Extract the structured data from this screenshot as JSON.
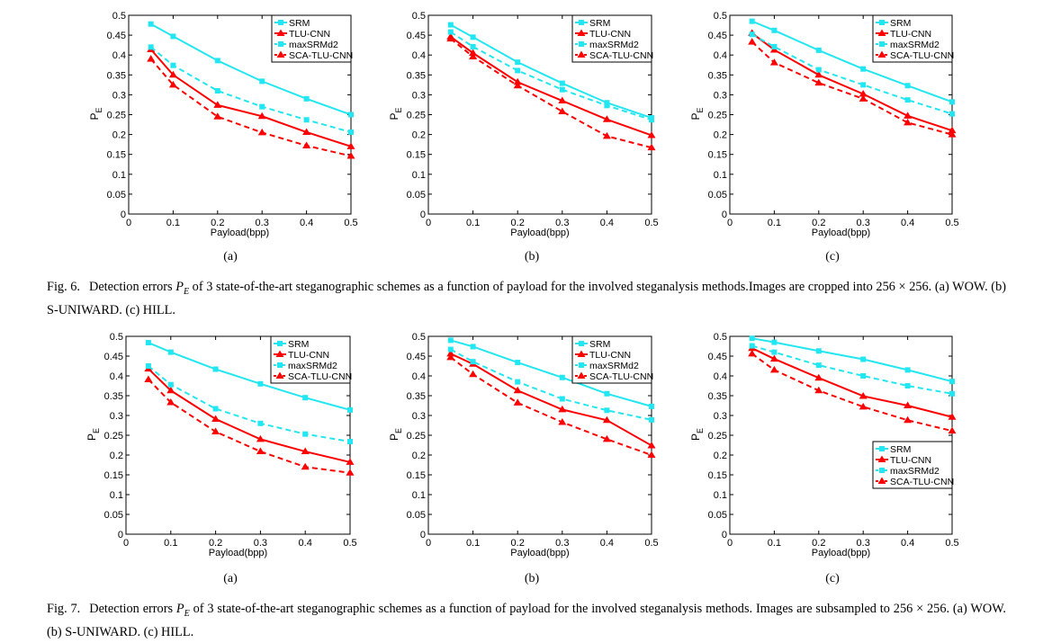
{
  "colors": {
    "SRM": "#22e6f2",
    "TLU-CNN": "#ff0000",
    "maxSRMd2": "#22e6f2",
    "SCA-TLU-CNN": "#ff0000"
  },
  "figures": [
    {
      "caption": {
        "label": "Fig. 6.",
        "pre": "Detection errors ",
        "sym": "P",
        "sub": "E",
        "post": " of 3 state-of-the-art steganographic schemes as a function of payload for the involved steganalysis methods.Images are cropped into 256 × 256. (a) WOW. (b) S-UNIWARD. (c) HILL."
      },
      "panels": [
        "(a)",
        "(b)",
        "(c)"
      ]
    },
    {
      "caption": {
        "label": "Fig. 7.",
        "pre": "Detection errors ",
        "sym": "P",
        "sub": "E",
        "post": " of 3 state-of-the-art steganographic schemes as a function of payload for the involved steganalysis methods. Images are subsampled to 256 × 256. (a) WOW. (b) S-UNIWARD. (c) HILL."
      },
      "panels": [
        "(a)",
        "(b)",
        "(c)"
      ]
    }
  ],
  "chart_data": [
    {
      "type": "line",
      "figure": "Fig. 6",
      "panel": "(a)",
      "xlabel": "Payload(bpp)",
      "ylabel": "P_E",
      "xlim": [
        0,
        0.5
      ],
      "ylim": [
        0,
        0.5
      ],
      "xticks": [
        "0",
        "0.1",
        "0.2",
        "0.3",
        "0.4",
        "0.5"
      ],
      "yticks": [
        "0",
        "0.05",
        "0.1",
        "0.15",
        "0.2",
        "0.25",
        "0.3",
        "0.35",
        "0.4",
        "0.45",
        "0.5"
      ],
      "legend": "top-right",
      "x": [
        0.05,
        0.1,
        0.2,
        0.3,
        0.4,
        0.5
      ],
      "series": [
        {
          "name": "SRM",
          "style": "solid",
          "marker": "square",
          "values": [
            0.478,
            0.447,
            0.386,
            0.334,
            0.29,
            0.25
          ]
        },
        {
          "name": "TLU-CNN",
          "style": "solid",
          "marker": "triangle",
          "values": [
            0.414,
            0.35,
            0.274,
            0.246,
            0.206,
            0.17
          ]
        },
        {
          "name": "maxSRMd2",
          "style": "dashed",
          "marker": "square",
          "values": [
            0.42,
            0.374,
            0.31,
            0.27,
            0.237,
            0.206
          ]
        },
        {
          "name": "SCA-TLU-CNN",
          "style": "dashed",
          "marker": "triangle",
          "values": [
            0.39,
            0.325,
            0.245,
            0.205,
            0.172,
            0.146
          ]
        }
      ]
    },
    {
      "type": "line",
      "figure": "Fig. 6",
      "panel": "(b)",
      "xlabel": "Payload(bpp)",
      "ylabel": "P_E",
      "xlim": [
        0,
        0.5
      ],
      "ylim": [
        0,
        0.5
      ],
      "xticks": [
        "0",
        "0.1",
        "0.2",
        "0.3",
        "0.4",
        "0.5"
      ],
      "yticks": [
        "0",
        "0.05",
        "0.1",
        "0.15",
        "0.2",
        "0.25",
        "0.3",
        "0.35",
        "0.4",
        "0.45",
        "0.5"
      ],
      "legend": "top-right",
      "x": [
        0.05,
        0.1,
        0.2,
        0.3,
        0.4,
        0.5
      ],
      "series": [
        {
          "name": "SRM",
          "style": "solid",
          "marker": "square",
          "values": [
            0.476,
            0.445,
            0.382,
            0.329,
            0.28,
            0.242
          ]
        },
        {
          "name": "TLU-CNN",
          "style": "solid",
          "marker": "triangle",
          "values": [
            0.446,
            0.405,
            0.332,
            0.285,
            0.238,
            0.198
          ]
        },
        {
          "name": "maxSRMd2",
          "style": "dashed",
          "marker": "square",
          "values": [
            0.458,
            0.421,
            0.361,
            0.313,
            0.273,
            0.237
          ]
        },
        {
          "name": "SCA-TLU-CNN",
          "style": "dashed",
          "marker": "triangle",
          "values": [
            0.441,
            0.396,
            0.323,
            0.258,
            0.196,
            0.167
          ]
        }
      ]
    },
    {
      "type": "line",
      "figure": "Fig. 6",
      "panel": "(c)",
      "xlabel": "Payload(bpp)",
      "ylabel": "P_E",
      "xlim": [
        0,
        0.5
      ],
      "ylim": [
        0,
        0.5
      ],
      "xticks": [
        "0",
        "0.1",
        "0.2",
        "0.3",
        "0.4",
        "0.5"
      ],
      "yticks": [
        "0",
        "0.05",
        "0.1",
        "0.15",
        "0.2",
        "0.25",
        "0.3",
        "0.35",
        "0.4",
        "0.45",
        "0.5"
      ],
      "legend": "top-right",
      "x": [
        0.05,
        0.1,
        0.2,
        0.3,
        0.4,
        0.5
      ],
      "series": [
        {
          "name": "SRM",
          "style": "solid",
          "marker": "square",
          "values": [
            0.485,
            0.462,
            0.412,
            0.365,
            0.323,
            0.282
          ]
        },
        {
          "name": "TLU-CNN",
          "style": "solid",
          "marker": "triangle",
          "values": [
            0.455,
            0.413,
            0.35,
            0.302,
            0.247,
            0.21
          ]
        },
        {
          "name": "maxSRMd2",
          "style": "dashed",
          "marker": "square",
          "values": [
            0.452,
            0.421,
            0.363,
            0.325,
            0.287,
            0.252
          ]
        },
        {
          "name": "SCA-TLU-CNN",
          "style": "dashed",
          "marker": "triangle",
          "values": [
            0.433,
            0.381,
            0.33,
            0.29,
            0.23,
            0.2
          ]
        }
      ]
    },
    {
      "type": "line",
      "figure": "Fig. 7",
      "panel": "(a)",
      "xlabel": "Payload(bpp)",
      "ylabel": "P_E",
      "xlim": [
        0,
        0.5
      ],
      "ylim": [
        0,
        0.5
      ],
      "xticks": [
        "0",
        "0.1",
        "0.2",
        "0.3",
        "0.4",
        "0.5"
      ],
      "yticks": [
        "0",
        "0.05",
        "0.1",
        "0.15",
        "0.2",
        "0.25",
        "0.3",
        "0.35",
        "0.4",
        "0.45",
        "0.5"
      ],
      "legend": "top-right",
      "x": [
        0.05,
        0.1,
        0.2,
        0.3,
        0.4,
        0.5
      ],
      "series": [
        {
          "name": "SRM",
          "style": "solid",
          "marker": "square",
          "values": [
            0.484,
            0.46,
            0.417,
            0.38,
            0.345,
            0.314
          ]
        },
        {
          "name": "TLU-CNN",
          "style": "solid",
          "marker": "triangle",
          "values": [
            0.418,
            0.363,
            0.291,
            0.24,
            0.209,
            0.182
          ]
        },
        {
          "name": "maxSRMd2",
          "style": "dashed",
          "marker": "square",
          "values": [
            0.425,
            0.378,
            0.317,
            0.28,
            0.253,
            0.234
          ]
        },
        {
          "name": "SCA-TLU-CNN",
          "style": "dashed",
          "marker": "triangle",
          "values": [
            0.391,
            0.333,
            0.259,
            0.209,
            0.17,
            0.155
          ]
        }
      ]
    },
    {
      "type": "line",
      "figure": "Fig. 7",
      "panel": "(b)",
      "xlabel": "Payload(bpp)",
      "ylabel": "P_E",
      "xlim": [
        0,
        0.5
      ],
      "ylim": [
        0,
        0.5
      ],
      "xticks": [
        "0",
        "0.1",
        "0.2",
        "0.3",
        "0.4",
        "0.5"
      ],
      "yticks": [
        "0",
        "0.05",
        "0.1",
        "0.15",
        "0.2",
        "0.25",
        "0.3",
        "0.35",
        "0.4",
        "0.45",
        "0.5"
      ],
      "legend": "top-right",
      "x": [
        0.05,
        0.1,
        0.2,
        0.3,
        0.4,
        0.5
      ],
      "series": [
        {
          "name": "SRM",
          "style": "solid",
          "marker": "square",
          "values": [
            0.49,
            0.474,
            0.434,
            0.396,
            0.355,
            0.323
          ]
        },
        {
          "name": "TLU-CNN",
          "style": "solid",
          "marker": "triangle",
          "values": [
            0.456,
            0.43,
            0.363,
            0.315,
            0.288,
            0.224
          ]
        },
        {
          "name": "maxSRMd2",
          "style": "dashed",
          "marker": "square",
          "values": [
            0.467,
            0.436,
            0.385,
            0.342,
            0.313,
            0.289
          ]
        },
        {
          "name": "SCA-TLU-CNN",
          "style": "dashed",
          "marker": "triangle",
          "values": [
            0.447,
            0.404,
            0.332,
            0.283,
            0.24,
            0.2
          ]
        }
      ]
    },
    {
      "type": "line",
      "figure": "Fig. 7",
      "panel": "(c)",
      "xlabel": "Payload(bpp)",
      "ylabel": "P_E",
      "xlim": [
        0,
        0.5
      ],
      "ylim": [
        0,
        0.5
      ],
      "xticks": [
        "0",
        "0.1",
        "0.2",
        "0.3",
        "0.4",
        "0.5"
      ],
      "yticks": [
        "0",
        "0.05",
        "0.1",
        "0.15",
        "0.2",
        "0.25",
        "0.3",
        "0.35",
        "0.4",
        "0.45",
        "0.5"
      ],
      "legend": "bottom-right",
      "x": [
        0.05,
        0.1,
        0.2,
        0.3,
        0.4,
        0.5
      ],
      "series": [
        {
          "name": "SRM",
          "style": "solid",
          "marker": "square",
          "values": [
            0.495,
            0.485,
            0.463,
            0.442,
            0.415,
            0.386
          ]
        },
        {
          "name": "TLU-CNN",
          "style": "solid",
          "marker": "triangle",
          "values": [
            0.47,
            0.443,
            0.395,
            0.349,
            0.325,
            0.296
          ]
        },
        {
          "name": "maxSRMd2",
          "style": "dashed",
          "marker": "square",
          "values": [
            0.476,
            0.46,
            0.427,
            0.4,
            0.375,
            0.355
          ]
        },
        {
          "name": "SCA-TLU-CNN",
          "style": "dashed",
          "marker": "triangle",
          "values": [
            0.456,
            0.415,
            0.363,
            0.322,
            0.288,
            0.261
          ]
        }
      ]
    }
  ]
}
